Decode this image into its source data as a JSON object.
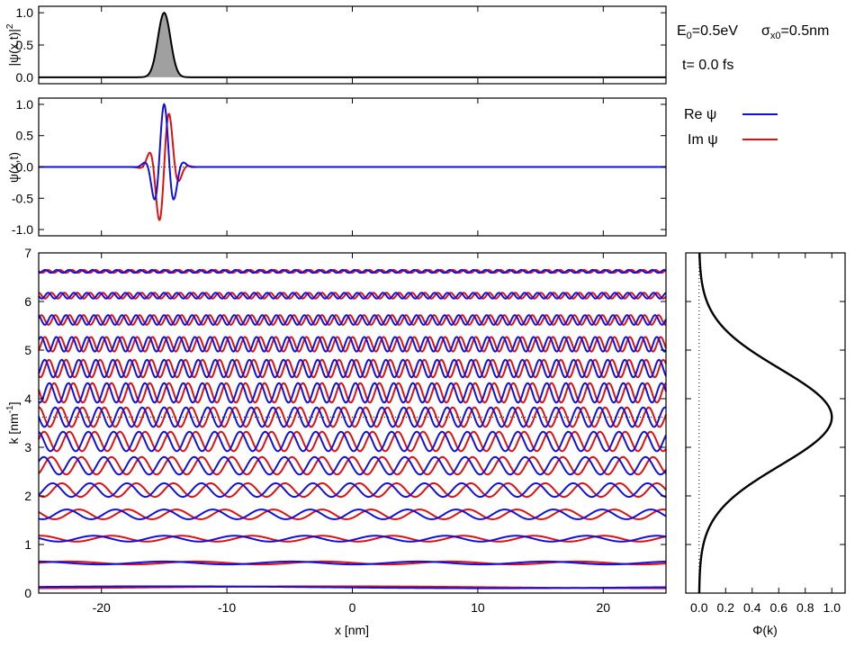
{
  "info": {
    "e0_text": "E",
    "e0_sub": "0",
    "e0_value": "=0.5eV",
    "sigma_symbol": "σ",
    "sigma_sub": "x0",
    "sigma_value": "=0.5nm",
    "time_label": "t=  0.0 fs"
  },
  "legend": {
    "re_label": "Re ψ",
    "im_label": "Im ψ",
    "re_color": "#1010e0",
    "im_color": "#e01010"
  },
  "chart_data": [
    {
      "type": "area",
      "id": "probability-density",
      "ylabel_main": "|ψ(x,t)|",
      "ylabel_sup": "2",
      "xlim": [
        -25,
        25
      ],
      "ylim": [
        -0.1,
        1.1
      ],
      "yticks": [
        "0.0",
        "0.5",
        "1.0"
      ],
      "yticks_values": [
        0,
        0.5,
        1
      ],
      "peak_x": -15,
      "peak_value": 1.0,
      "sigma_x": 0.5,
      "fill_color": "#a0a0a0",
      "line_color": "#000000"
    },
    {
      "type": "line",
      "id": "wavefunction",
      "ylabel": "ψ(x,t)",
      "xlim": [
        -25,
        25
      ],
      "ylim": [
        -1.1,
        1.1
      ],
      "yticks": [
        "-1.0",
        "-0.5",
        "0.0",
        "0.5",
        "1.0"
      ],
      "yticks_values": [
        -1,
        -0.5,
        0,
        0.5,
        1
      ],
      "center_x": -15,
      "sigma_x": 0.5,
      "k0": 3.62,
      "series": [
        {
          "name": "Re ψ",
          "color": "#1010e0"
        },
        {
          "name": "Im ψ",
          "color": "#e01010"
        }
      ]
    },
    {
      "type": "line",
      "id": "plane-wave-components",
      "xlabel": "x [nm]",
      "ylabel_main": "k [nm",
      "ylabel_sup": "-1",
      "ylabel_end": "]",
      "xlim": [
        -25,
        25
      ],
      "ylim": [
        0,
        7
      ],
      "xticks": [
        "-20",
        "-10",
        "0",
        "10",
        "20"
      ],
      "xticks_values": [
        -20,
        -10,
        0,
        10,
        20
      ],
      "yticks": [
        "0",
        "1",
        "2",
        "3",
        "4",
        "5",
        "6",
        "7"
      ],
      "yticks_values": [
        0,
        1,
        2,
        3,
        4,
        5,
        6,
        7
      ],
      "k_values": [
        0.12,
        0.62,
        1.12,
        1.62,
        2.12,
        2.62,
        3.12,
        3.62,
        4.12,
        4.62,
        5.12,
        5.62,
        6.12,
        6.62
      ],
      "amplitudes": [
        0.02,
        0.03,
        0.06,
        0.1,
        0.14,
        0.18,
        0.2,
        0.2,
        0.2,
        0.18,
        0.15,
        0.1,
        0.06,
        0.03
      ],
      "reference_k": 3.62
    },
    {
      "type": "line",
      "id": "momentum-distribution",
      "xlabel": "Φ(k)",
      "xlim": [
        -0.1,
        1.1
      ],
      "ylim": [
        0,
        7
      ],
      "xticks": [
        "0.0",
        "0.2",
        "0.4",
        "0.6",
        "0.8",
        "1.0"
      ],
      "xticks_values": [
        0,
        0.2,
        0.4,
        0.6,
        0.8,
        1.0
      ],
      "peak_k": 3.62,
      "peak_value": 1.0,
      "sigma_k": 1.0
    }
  ]
}
